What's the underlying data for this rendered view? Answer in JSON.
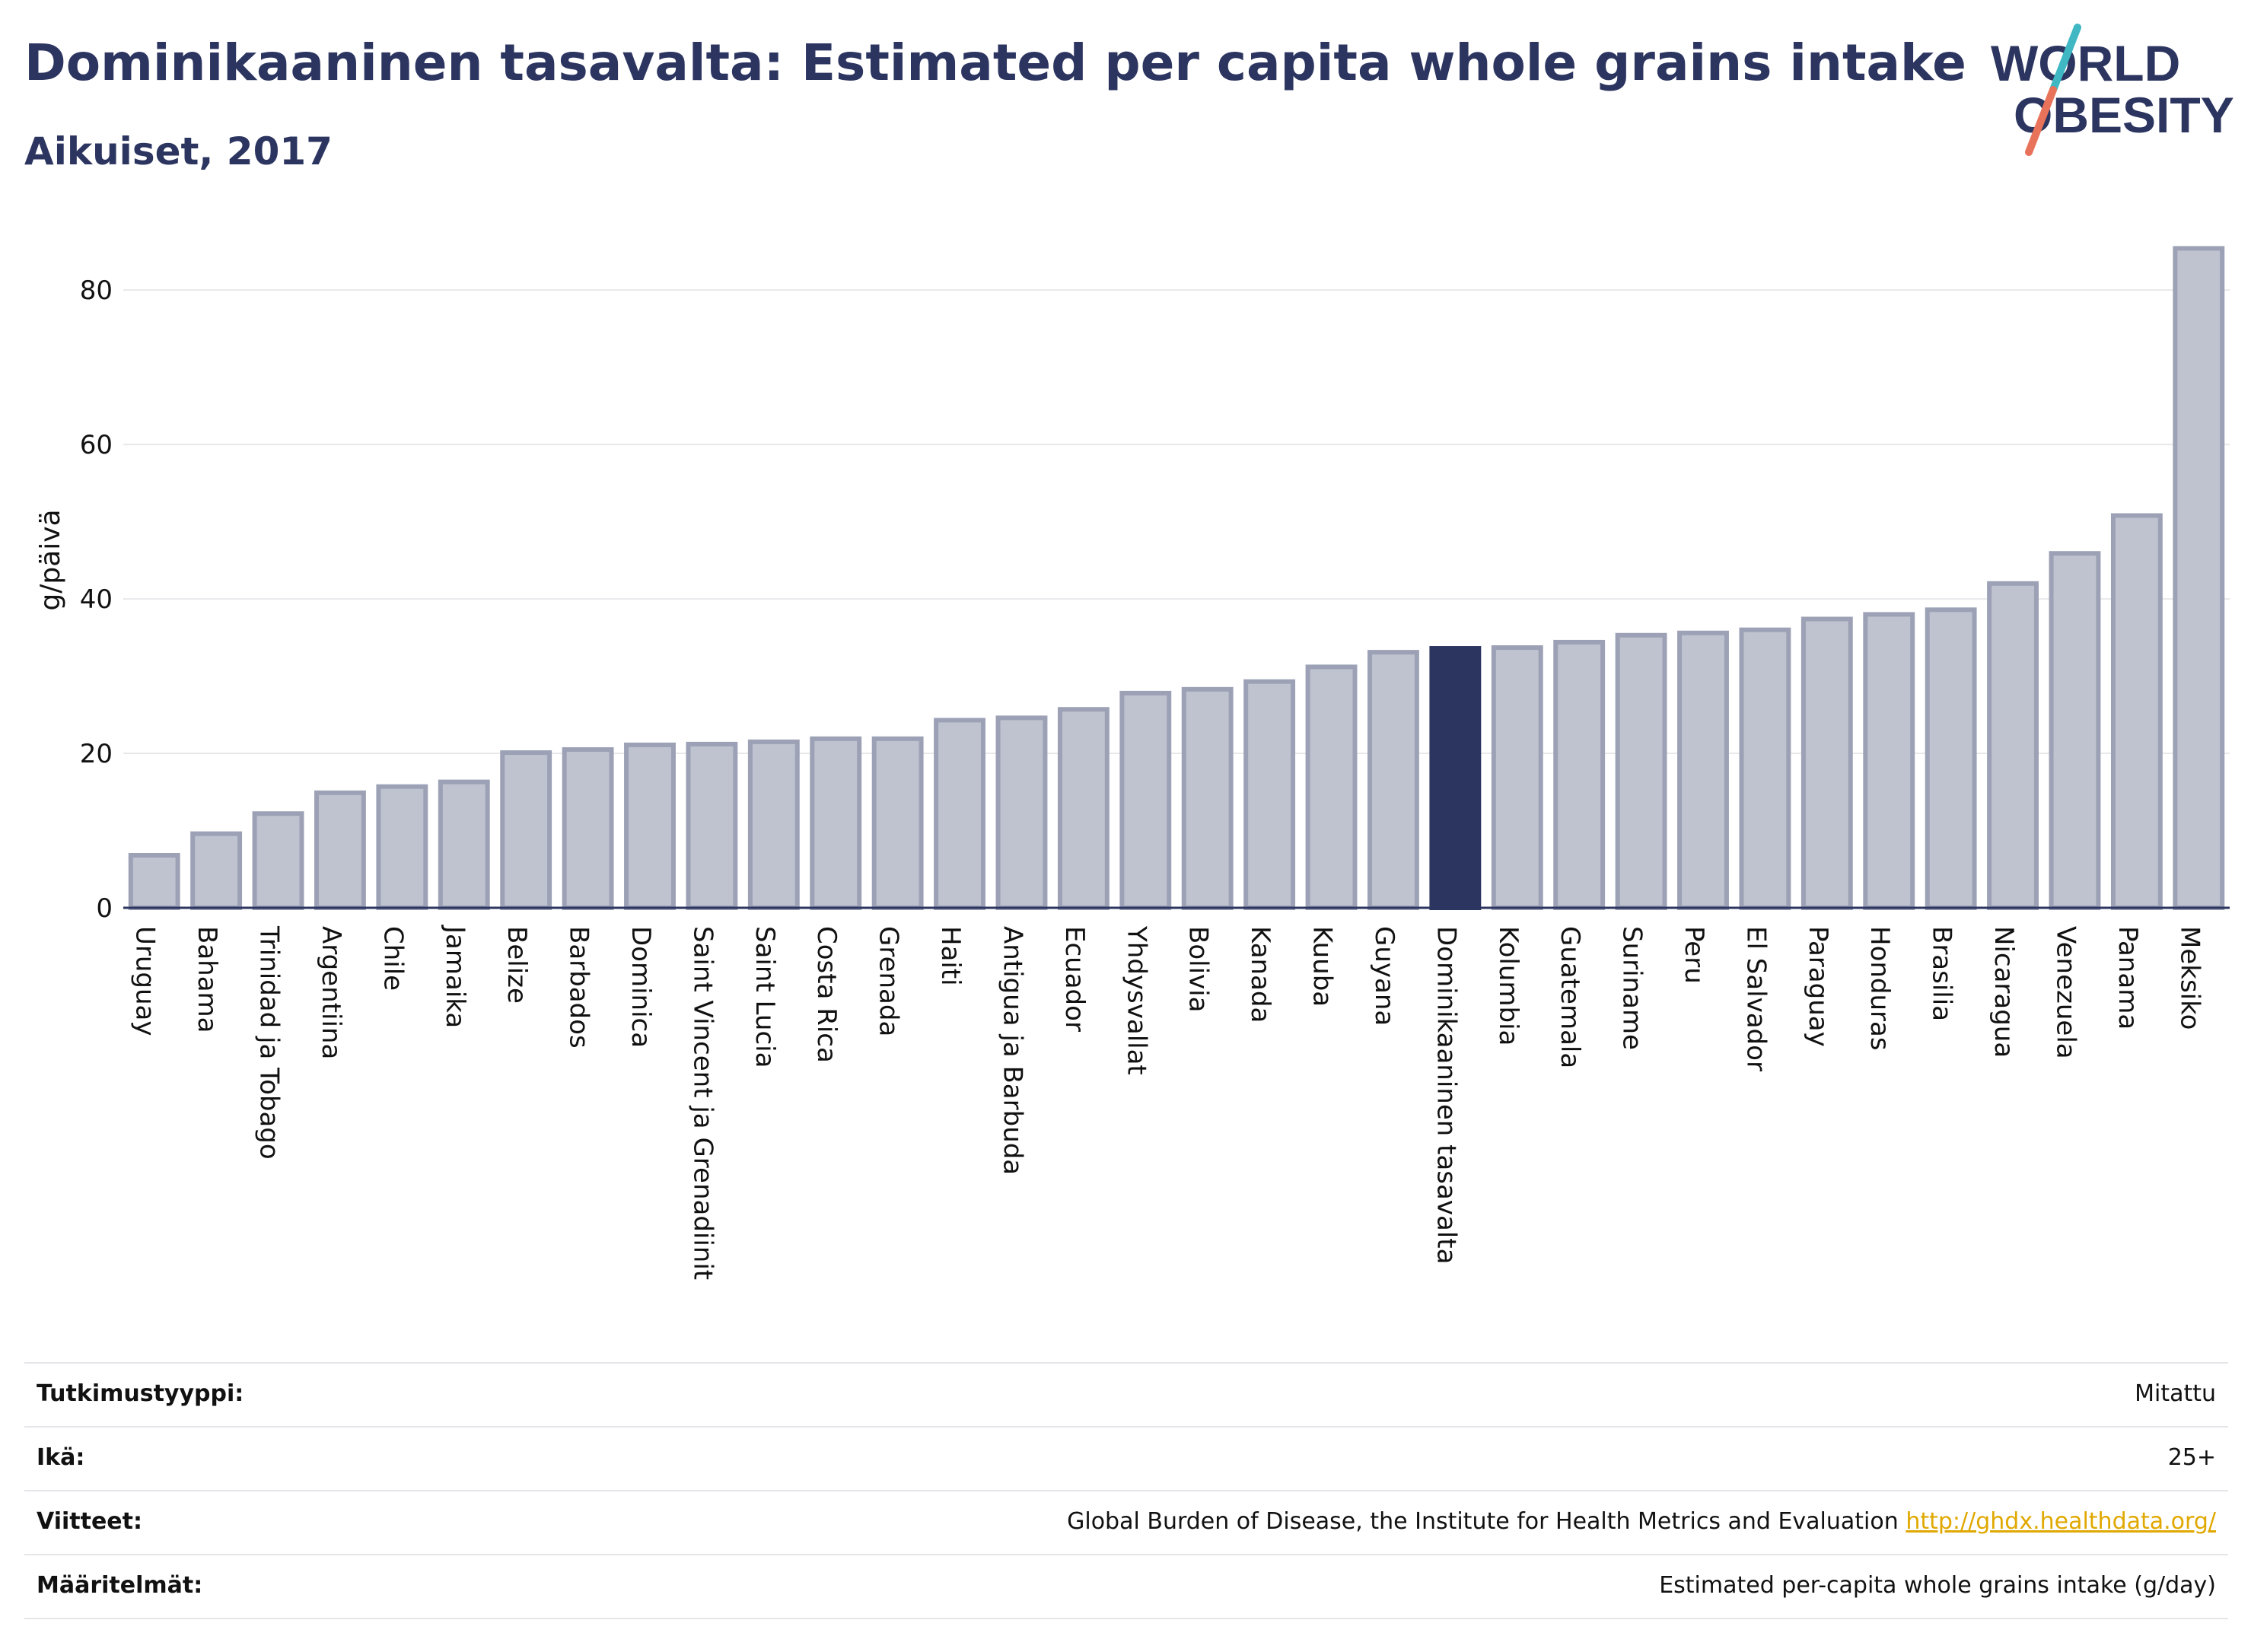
{
  "header": {
    "title": "Dominikaaninen tasavalta: Estimated per capita whole grains intake",
    "subtitle": "Aikuiset, 2017"
  },
  "logo": {
    "line1": "WORLD",
    "line2": "OBESITY",
    "accent_colors": [
      "#3fb8c4",
      "#e8735a"
    ]
  },
  "chart_data": {
    "type": "bar",
    "ylabel": "g/päivä",
    "ylim": [
      0,
      88
    ],
    "yticks": [
      0,
      20,
      40,
      60,
      80
    ],
    "grid": true,
    "highlight": "Dominikaaninen tasavalta",
    "colors": {
      "bar": "#bfc2cf",
      "bar_edge": "#9ca1b6",
      "highlight": "#2c3560",
      "grid": "#e8e8ec",
      "axis": "#2c3560"
    },
    "categories": [
      "Uruguay",
      "Bahama",
      "Trinidad ja Tobago",
      "Argentiina",
      "Chile",
      "Jamaika",
      "Belize",
      "Barbados",
      "Dominica",
      "Saint Vincent ja Grenadiinit",
      "Saint Lucia",
      "Costa Rica",
      "Grenada",
      "Haiti",
      "Antigua ja Barbuda",
      "Ecuador",
      "Yhdysvallat",
      "Bolivia",
      "Kanada",
      "Kuuba",
      "Guyana",
      "Dominikaaninen tasavalta",
      "Kolumbia",
      "Guatemala",
      "Suriname",
      "Peru",
      "El Salvador",
      "Paraguay",
      "Honduras",
      "Brasilia",
      "Nicaragua",
      "Venezuela",
      "Panama",
      "Meksiko"
    ],
    "values": [
      6.8,
      9.6,
      12.2,
      14.9,
      15.7,
      16.3,
      20.1,
      20.5,
      21.1,
      21.2,
      21.5,
      21.9,
      21.9,
      24.3,
      24.6,
      25.7,
      27.8,
      28.3,
      29.3,
      31.2,
      33.1,
      33.6,
      33.7,
      34.4,
      35.3,
      35.6,
      36.0,
      37.4,
      38.0,
      38.6,
      42.0,
      45.9,
      50.8,
      85.4
    ]
  },
  "meta": [
    {
      "label": "Tutkimustyyppi:",
      "value": "Mitattu"
    },
    {
      "label": "Ikä:",
      "value": "25+"
    },
    {
      "label": "Viitteet:",
      "value": "Global Burden of Disease, the Institute for Health Metrics and Evaluation",
      "link": "http://ghdx.healthdata.org/"
    },
    {
      "label": "Määritelmät:",
      "value": "Estimated per-capita whole grains intake (g/day)"
    }
  ]
}
